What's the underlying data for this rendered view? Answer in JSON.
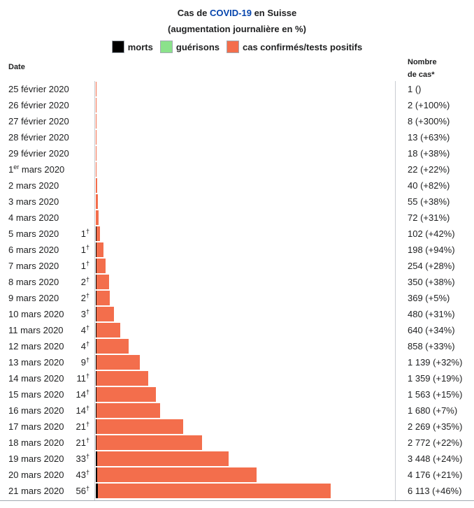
{
  "title": {
    "prefix": "Cas de ",
    "link": "COVID-19",
    "suffix": " en Suisse",
    "subtitle": "(augmentation journalière en %)"
  },
  "legend": [
    {
      "label": "morts",
      "color": "#000000"
    },
    {
      "label": "guérisons",
      "color": "#8be28b"
    },
    {
      "label": "cas confirmés/tests positifs",
      "color": "#f36e4c"
    }
  ],
  "headers": {
    "date": "Date",
    "cases_line1": "Nombre",
    "cases_line2": "de cas*"
  },
  "chart_data": {
    "type": "bar",
    "orientation": "horizontal",
    "series_colors": {
      "deaths": "#000000",
      "recoveries": "#8be28b",
      "cases": "#f36e4c"
    },
    "rows": [
      {
        "date": "25 février 2020",
        "deaths": null,
        "cases": 1,
        "cases_text": "1 ()"
      },
      {
        "date": "26 février 2020",
        "deaths": null,
        "cases": 2,
        "cases_text": "2 (+100%)"
      },
      {
        "date": "27 février 2020",
        "deaths": null,
        "cases": 8,
        "cases_text": "8 (+300%)"
      },
      {
        "date": "28 février 2020",
        "deaths": null,
        "cases": 13,
        "cases_text": "13 (+63%)"
      },
      {
        "date": "29 février 2020",
        "deaths": null,
        "cases": 18,
        "cases_text": "18 (+38%)"
      },
      {
        "date_main": "1",
        "date_sup": "er",
        "date_rest": " mars 2020",
        "deaths": null,
        "cases": 22,
        "cases_text": "22 (+22%)"
      },
      {
        "date": "2 mars 2020",
        "deaths": null,
        "cases": 40,
        "cases_text": "40 (+82%)"
      },
      {
        "date": "3 mars 2020",
        "deaths": null,
        "cases": 55,
        "cases_text": "55 (+38%)"
      },
      {
        "date": "4 mars 2020",
        "deaths": null,
        "cases": 72,
        "cases_text": "72 (+31%)"
      },
      {
        "date": "5 mars 2020",
        "deaths": 1,
        "cases": 102,
        "cases_text": "102 (+42%)"
      },
      {
        "date": "6 mars 2020",
        "deaths": 1,
        "cases": 198,
        "cases_text": "198 (+94%)"
      },
      {
        "date": "7 mars 2020",
        "deaths": 1,
        "cases": 254,
        "cases_text": "254 (+28%)"
      },
      {
        "date": "8 mars 2020",
        "deaths": 2,
        "cases": 350,
        "cases_text": "350 (+38%)"
      },
      {
        "date": "9 mars 2020",
        "deaths": 2,
        "cases": 369,
        "cases_text": "369 (+5%)"
      },
      {
        "date": "10 mars 2020",
        "deaths": 3,
        "cases": 480,
        "cases_text": "480 (+31%)"
      },
      {
        "date": "11 mars 2020",
        "deaths": 4,
        "cases": 640,
        "cases_text": "640 (+34%)"
      },
      {
        "date": "12 mars 2020",
        "deaths": 4,
        "cases": 858,
        "cases_text": "858 (+33%)"
      },
      {
        "date": "13 mars 2020",
        "deaths": 9,
        "cases": 1139,
        "cases_text": "1 139 (+32%)"
      },
      {
        "date": "14 mars 2020",
        "deaths": 11,
        "cases": 1359,
        "cases_text": "1 359 (+19%)"
      },
      {
        "date": "15 mars 2020",
        "deaths": 14,
        "cases": 1563,
        "cases_text": "1 563 (+15%)"
      },
      {
        "date": "16 mars 2020",
        "deaths": 14,
        "cases": 1680,
        "cases_text": "1 680 (+7%)"
      },
      {
        "date": "17 mars 2020",
        "deaths": 21,
        "cases": 2269,
        "cases_text": "2 269 (+35%)"
      },
      {
        "date": "18 mars 2020",
        "deaths": 21,
        "cases": 2772,
        "cases_text": "2 772 (+22%)"
      },
      {
        "date": "19 mars 2020",
        "deaths": 33,
        "cases": 3448,
        "cases_text": "3 448 (+24%)"
      },
      {
        "date": "20 mars 2020",
        "deaths": 43,
        "cases": 4176,
        "cases_text": "4 176 (+21%)"
      },
      {
        "date": "21 mars 2020",
        "deaths": 56,
        "cases": 6113,
        "cases_text": "6 113 (+46%)"
      }
    ],
    "death_marker": "†"
  }
}
